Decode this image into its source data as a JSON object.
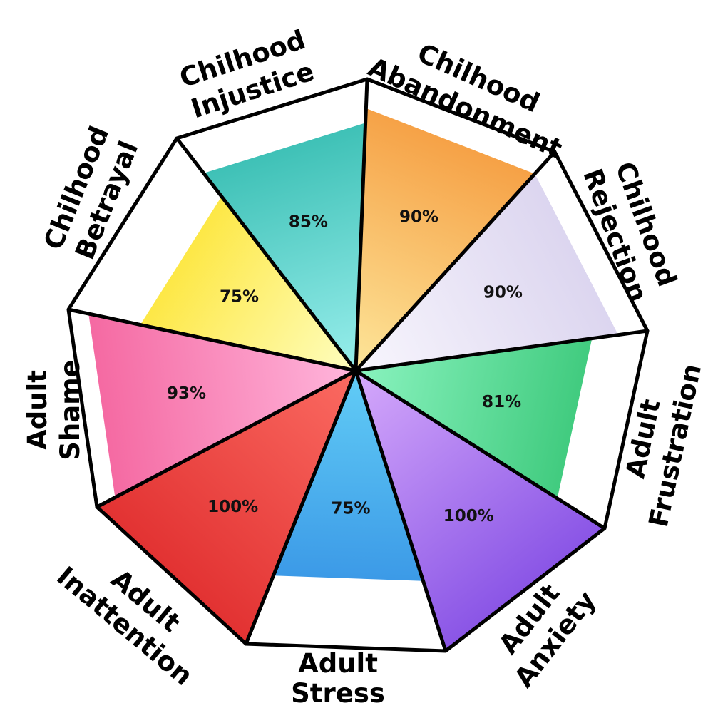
{
  "chart_data": {
    "type": "radial-bar",
    "value_unit": "%",
    "max": 100,
    "categories": [
      {
        "label": [
          "Chilhood",
          "Abandonment"
        ],
        "value": 90,
        "value_text": "90%",
        "colors": [
          "#f59a3d",
          "#fde69a"
        ]
      },
      {
        "label": [
          "Chilhood",
          "Rejection"
        ],
        "value": 90,
        "value_text": "90%",
        "colors": [
          "#d9d2ee",
          "#f8f6fd"
        ]
      },
      {
        "label": [
          "Adult",
          "Frustration"
        ],
        "value": 81,
        "value_text": "81%",
        "colors": [
          "#30c270",
          "#8af3bf"
        ]
      },
      {
        "label": [
          "Adult",
          "Anxiety"
        ],
        "value": 100,
        "value_text": "100%",
        "colors": [
          "#8a55e6",
          "#d5a9fb"
        ]
      },
      {
        "label": [
          "Adult",
          "Stress"
        ],
        "value": 75,
        "value_text": "75%",
        "colors": [
          "#2f89e2",
          "#62cdf6"
        ]
      },
      {
        "label": [
          "Adult",
          "Inattention"
        ],
        "value": 100,
        "value_text": "100%",
        "colors": [
          "#e23232",
          "#fb6b62"
        ]
      },
      {
        "label": [
          "Adult",
          "Shame"
        ],
        "value": 93,
        "value_text": "93%",
        "colors": [
          "#f4649e",
          "#ffb6dc"
        ]
      },
      {
        "label": [
          "Chilhood",
          "Betrayal"
        ],
        "value": 75,
        "value_text": "75%",
        "colors": [
          "#fde01d",
          "#fefec0"
        ]
      },
      {
        "label": [
          "Chilhood",
          "Injustice"
        ],
        "value": 85,
        "value_text": "85%",
        "colors": [
          "#2fb9ad",
          "#98eeec"
        ]
      }
    ]
  }
}
